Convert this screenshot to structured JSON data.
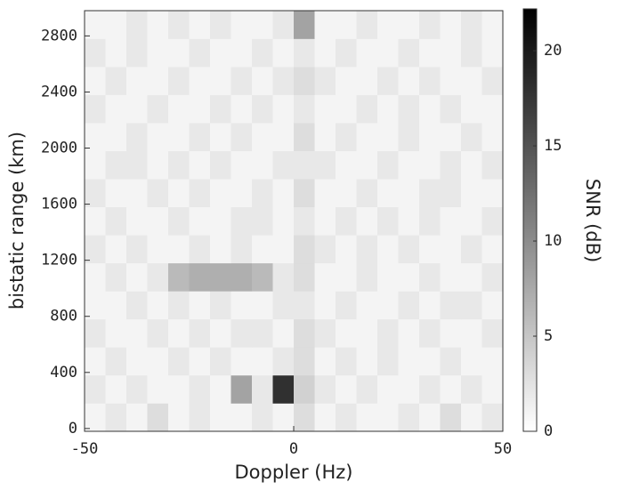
{
  "chart_data": {
    "type": "heatmap",
    "xlabel": "Doppler (Hz)",
    "ylabel": "bistatic range (km)",
    "colorbar_label": "SNR (dB)",
    "xlim": [
      -50,
      50
    ],
    "ylim": [
      -20,
      2980
    ],
    "zlim": [
      0,
      22.2
    ],
    "xticks": [
      -50,
      0,
      50
    ],
    "yticks": [
      0,
      400,
      800,
      1200,
      1600,
      2000,
      2400,
      2800
    ],
    "zticks": [
      0,
      5,
      10,
      15,
      20
    ],
    "xbins": [
      -50,
      -45,
      -40,
      -35,
      -30,
      -25,
      -20,
      -15,
      -10,
      -5,
      0,
      5,
      10,
      15,
      20,
      25,
      30,
      35,
      40,
      45,
      50
    ],
    "ybins": [
      -20,
      180,
      380,
      580,
      780,
      980,
      1180,
      1380,
      1580,
      1780,
      1980,
      2180,
      2380,
      2580,
      2780,
      2980
    ],
    "colormap": [
      "#ffffff",
      "#000000"
    ],
    "z": [
      [
        1,
        2,
        1,
        3,
        1,
        2,
        1,
        1,
        2,
        1,
        3,
        1,
        2,
        1,
        1,
        2,
        1,
        3,
        1,
        2
      ],
      [
        2,
        1,
        2,
        1,
        1,
        2,
        1,
        8,
        2,
        18,
        4,
        2,
        1,
        2,
        1,
        1,
        2,
        1,
        2,
        1
      ],
      [
        1,
        2,
        1,
        1,
        2,
        1,
        2,
        1,
        1,
        2,
        3,
        1,
        2,
        1,
        2,
        1,
        1,
        2,
        1,
        1
      ],
      [
        2,
        1,
        1,
        2,
        1,
        2,
        1,
        2,
        2,
        1,
        3,
        2,
        1,
        1,
        2,
        1,
        2,
        1,
        1,
        2
      ],
      [
        1,
        1,
        2,
        1,
        2,
        1,
        2,
        1,
        1,
        2,
        2,
        1,
        2,
        1,
        1,
        2,
        1,
        2,
        2,
        1
      ],
      [
        1,
        2,
        1,
        2,
        6,
        7,
        7,
        7,
        6,
        2,
        3,
        1,
        1,
        2,
        1,
        1,
        2,
        1,
        1,
        2
      ],
      [
        2,
        1,
        2,
        1,
        1,
        2,
        1,
        2,
        1,
        1,
        3,
        2,
        1,
        2,
        1,
        2,
        1,
        1,
        2,
        1
      ],
      [
        1,
        2,
        1,
        1,
        2,
        1,
        1,
        2,
        2,
        1,
        2,
        1,
        2,
        1,
        2,
        1,
        2,
        1,
        1,
        2
      ],
      [
        2,
        1,
        1,
        2,
        1,
        2,
        1,
        1,
        2,
        1,
        3,
        1,
        1,
        2,
        1,
        1,
        2,
        2,
        1,
        1
      ],
      [
        1,
        2,
        2,
        1,
        2,
        1,
        2,
        1,
        1,
        2,
        2,
        2,
        1,
        1,
        2,
        1,
        1,
        2,
        1,
        2
      ],
      [
        1,
        1,
        2,
        1,
        1,
        2,
        1,
        2,
        1,
        1,
        3,
        1,
        2,
        1,
        1,
        2,
        1,
        1,
        2,
        1
      ],
      [
        2,
        1,
        1,
        2,
        1,
        1,
        2,
        1,
        2,
        1,
        2,
        1,
        1,
        2,
        1,
        2,
        1,
        2,
        1,
        1
      ],
      [
        1,
        2,
        1,
        1,
        2,
        1,
        1,
        2,
        1,
        2,
        3,
        2,
        1,
        1,
        2,
        1,
        2,
        1,
        1,
        2
      ],
      [
        2,
        1,
        2,
        1,
        1,
        2,
        1,
        1,
        2,
        1,
        2,
        1,
        2,
        1,
        1,
        2,
        1,
        1,
        2,
        1
      ],
      [
        1,
        1,
        2,
        1,
        2,
        1,
        2,
        1,
        1,
        2,
        8,
        1,
        1,
        2,
        1,
        1,
        2,
        1,
        2,
        1
      ]
    ]
  }
}
